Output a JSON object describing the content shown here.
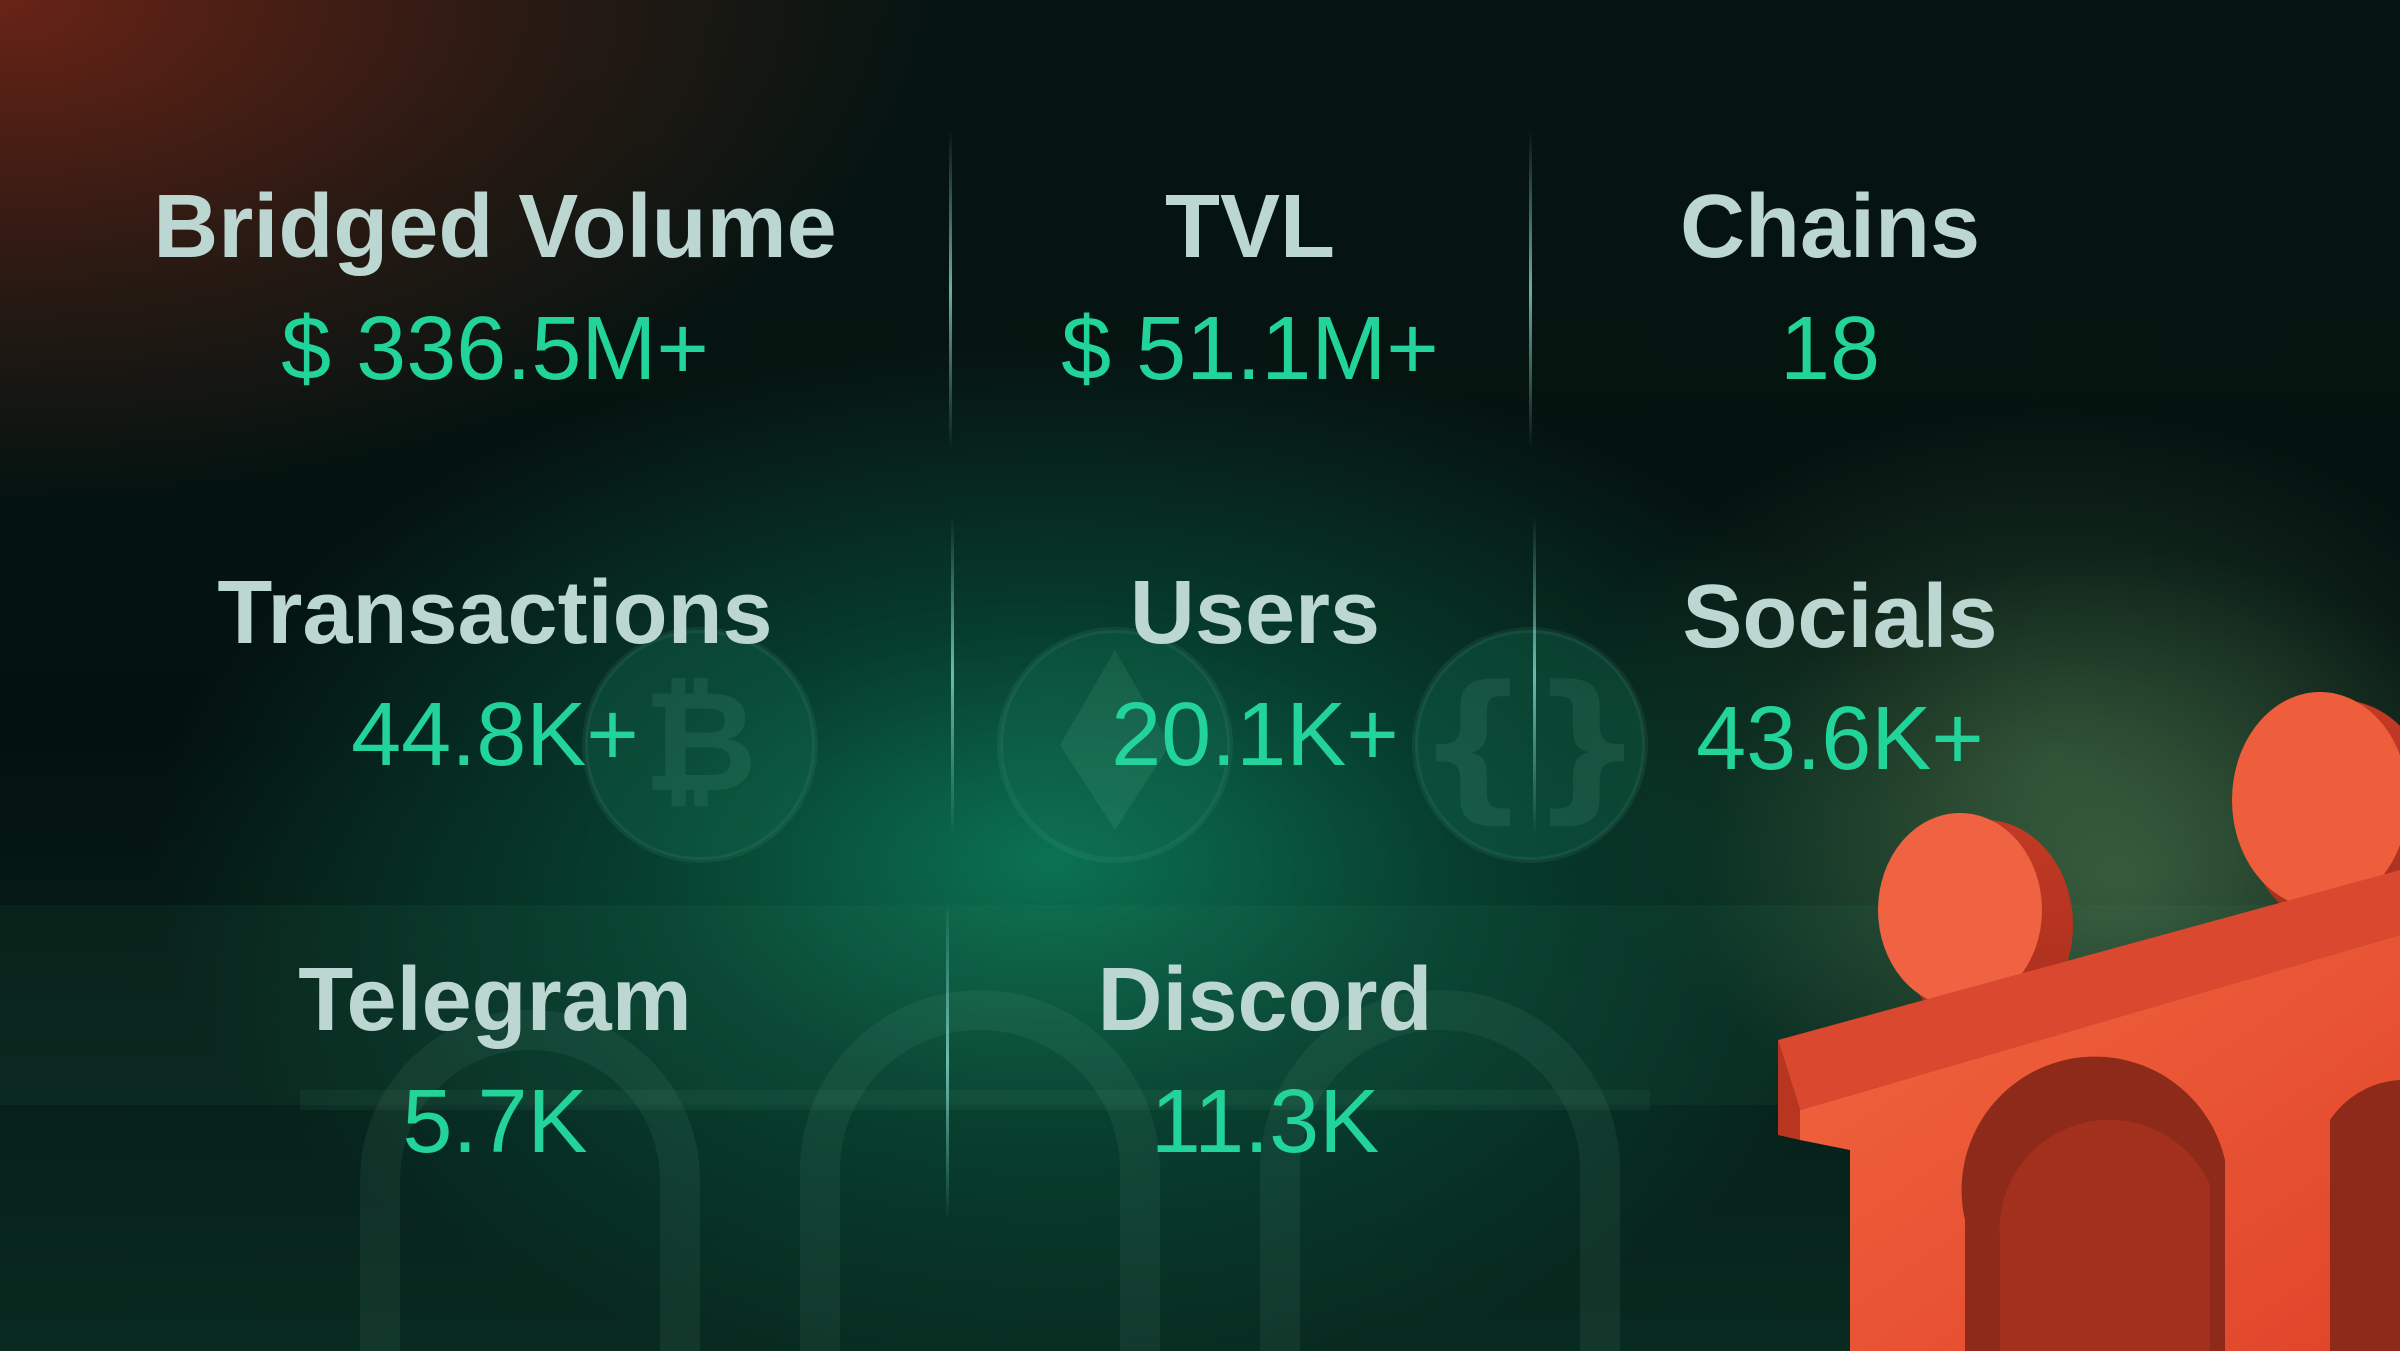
{
  "stats": [
    {
      "label": "Bridged Volume",
      "value": "$ 336.5M+"
    },
    {
      "label": "TVL",
      "value": "$ 51.1M+"
    },
    {
      "label": "Chains",
      "value": "18"
    },
    {
      "label": "Transactions",
      "value": "44.8K+"
    },
    {
      "label": "Users",
      "value": "20.1K+"
    },
    {
      "label": "Socials",
      "value": "43.6K+"
    },
    {
      "label": "Telegram",
      "value": "5.7K"
    },
    {
      "label": "Discord",
      "value": "11.3K"
    }
  ],
  "colors": {
    "label": "#bcd7d1",
    "value": "#22d39a",
    "accent_3d_object": "#f0553a",
    "background": "#030d0b"
  },
  "icons": [
    "bitcoin-coin-icon",
    "ethereum-coin-icon",
    "braces-coin-icon",
    "bridge-3d-icon"
  ]
}
